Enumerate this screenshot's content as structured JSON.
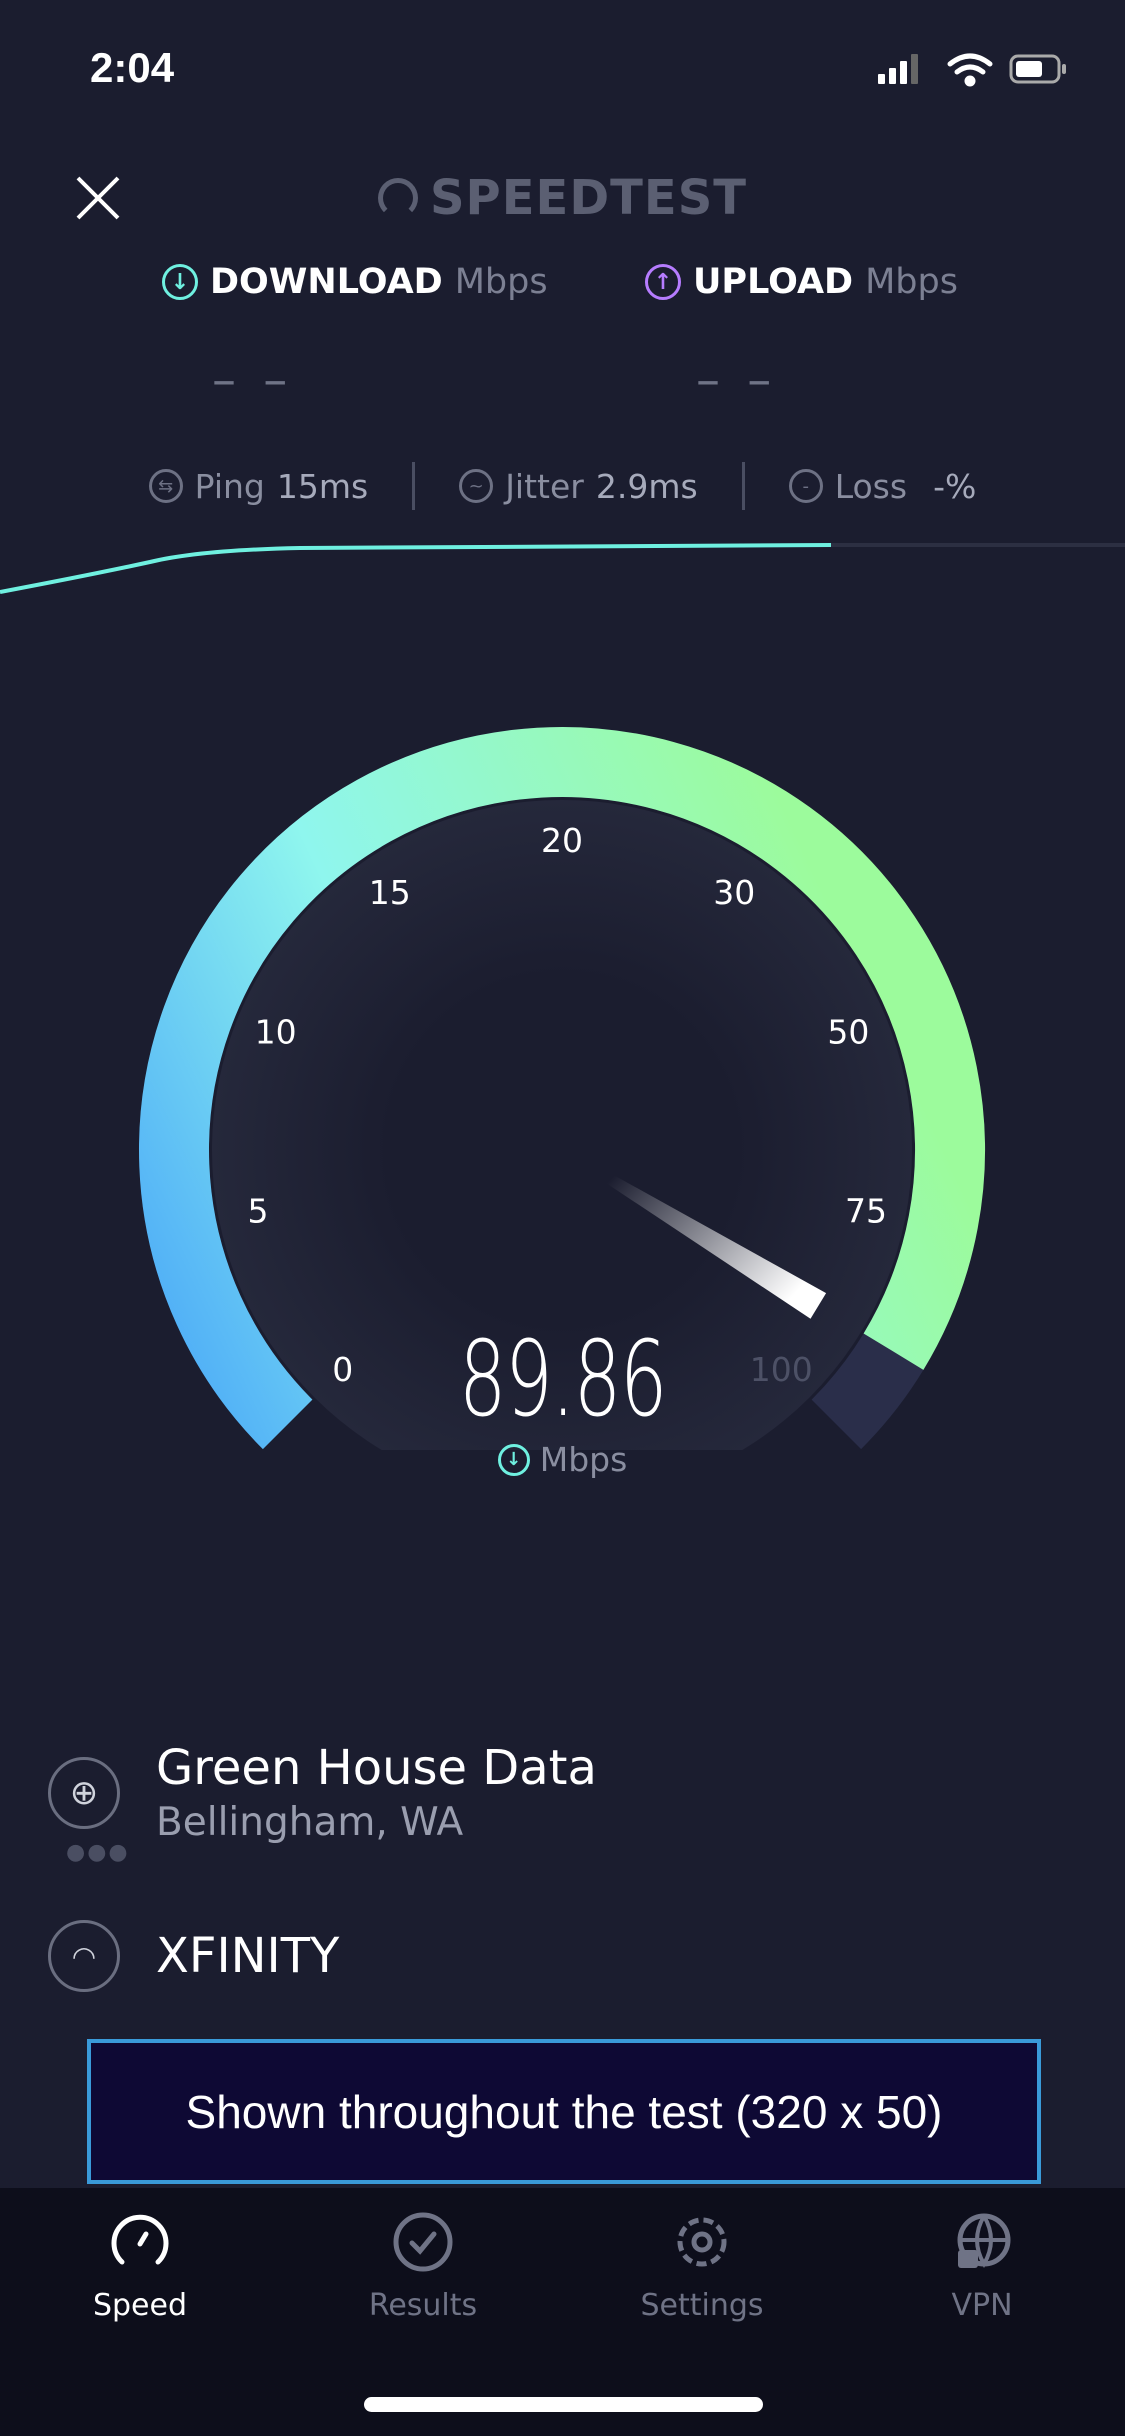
{
  "status_bar": {
    "time": "2:04",
    "icons": [
      "signal-icon",
      "wifi-icon",
      "battery-icon"
    ]
  },
  "header": {
    "close_icon": "close-icon",
    "logo": "SPEEDTEST"
  },
  "download": {
    "label": "DOWNLOAD",
    "unit": "Mbps",
    "value": "– –",
    "color": "#6ff0e0"
  },
  "upload": {
    "label": "UPLOAD",
    "unit": "Mbps",
    "value": "– –",
    "color": "#b67cff"
  },
  "stats": {
    "ping": {
      "label": "Ping",
      "value": "15",
      "unit": "ms"
    },
    "jitter": {
      "label": "Jitter",
      "value": "2.9",
      "unit": "ms"
    },
    "loss": {
      "label": "Loss",
      "value": "-",
      "unit": "%"
    }
  },
  "gauge": {
    "ticks": [
      "0",
      "5",
      "10",
      "15",
      "20",
      "30",
      "50",
      "75",
      "100"
    ],
    "current": 89.86,
    "value_text": "89.86",
    "unit": "Mbps"
  },
  "server": {
    "name": "Green House Data",
    "location": "Bellingham, WA"
  },
  "isp": {
    "name": "XFINITY"
  },
  "ad": {
    "text": "Shown throughout the test (320 x 50)"
  },
  "tabs": [
    {
      "label": "Speed",
      "active": true
    },
    {
      "label": "Results"
    },
    {
      "label": "Settings"
    },
    {
      "label": "VPN"
    }
  ]
}
